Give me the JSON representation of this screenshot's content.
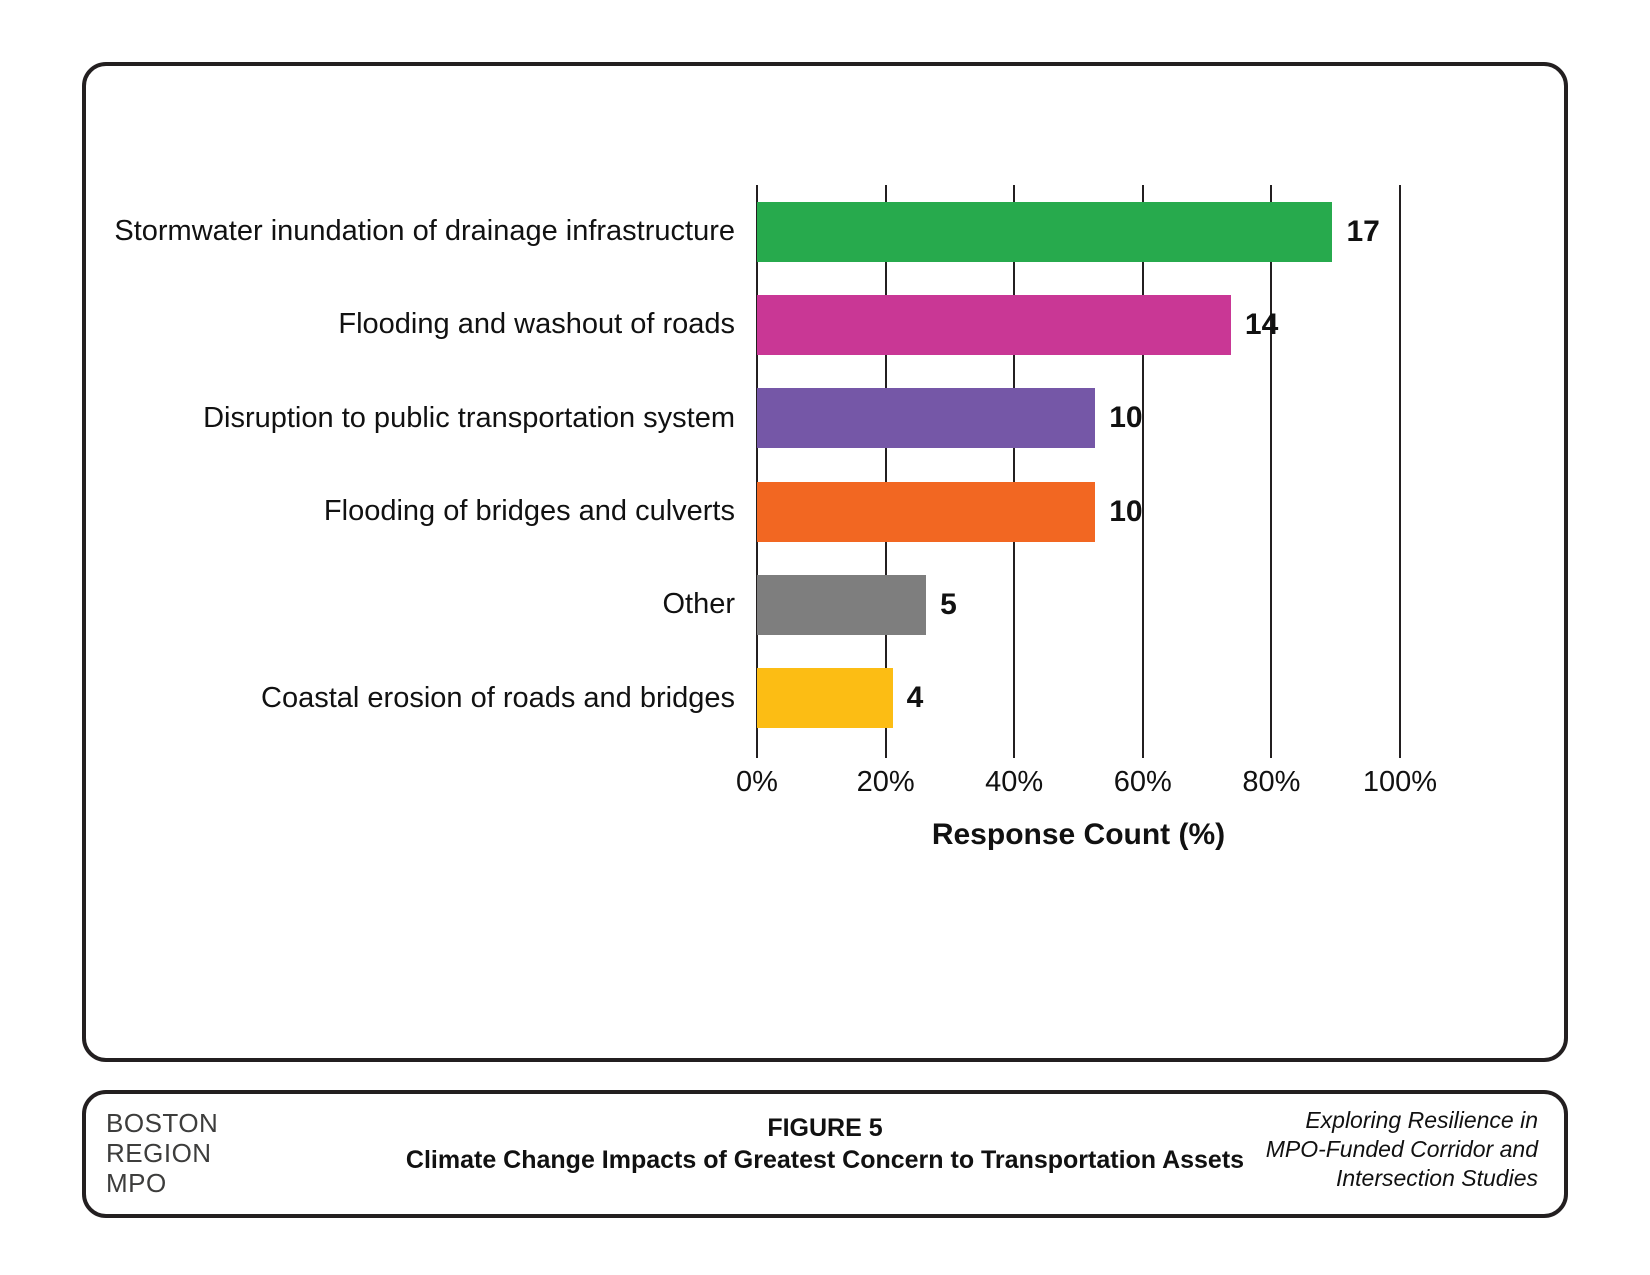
{
  "frame_color": "#231F20",
  "chart_data": {
    "type": "bar",
    "orientation": "horizontal",
    "title": "",
    "xlabel": "Response Count (%)",
    "categories": [
      "Stormwater inundation of drainage infrastructure",
      "Flooding and washout of roads",
      "Disruption to public transportation system",
      "Flooding of bridges and culverts",
      "Other",
      "Coastal erosion of roads and bridges"
    ],
    "values": [
      17,
      14,
      10,
      10,
      5,
      4
    ],
    "percent_widths": [
      89.5,
      73.7,
      52.6,
      52.6,
      26.3,
      21.1
    ],
    "bar_colors": [
      "#27AA4D",
      "#C93795",
      "#7557A7",
      "#F26722",
      "#7E7E7E",
      "#FCBD14"
    ],
    "x_tick_labels": [
      "0%",
      "20%",
      "40%",
      "60%",
      "80%",
      "100%"
    ],
    "xlim": [
      0,
      100
    ],
    "grid": "vertical-only",
    "legend": "none"
  },
  "footer": {
    "logo_lines": [
      "BOSTON",
      "REGION",
      "MPO"
    ],
    "figure_label": "FIGURE 5",
    "figure_title": "Climate Change Impacts of Greatest Concern to Transportation Assets",
    "right_lines": [
      "Exploring Resilience in",
      "MPO-Funded Corridor and",
      "Intersection Studies"
    ]
  }
}
